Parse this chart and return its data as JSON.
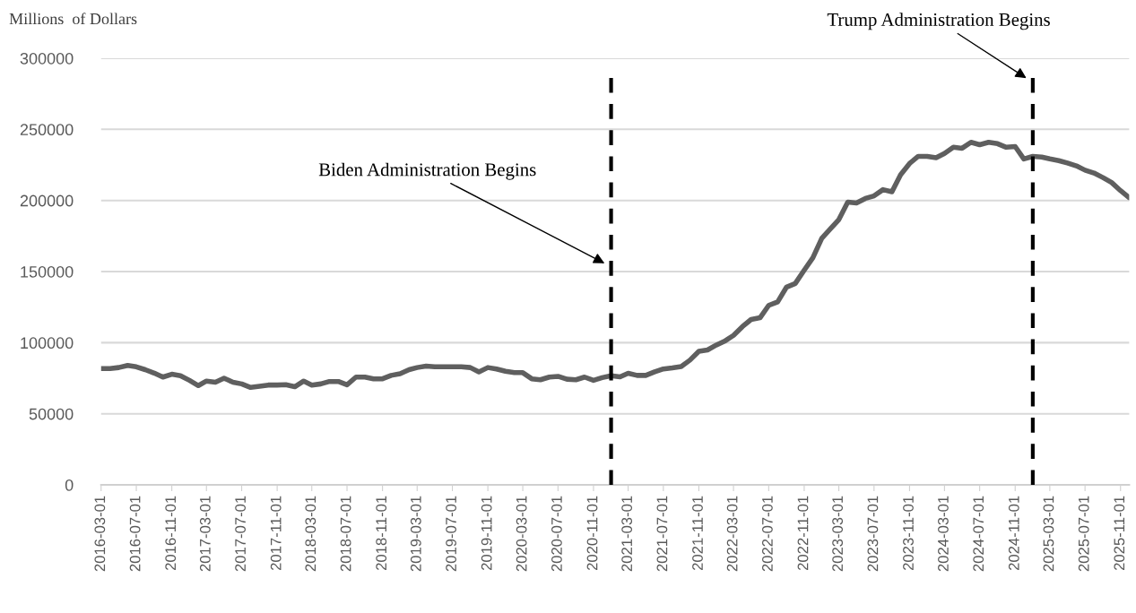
{
  "chart_data": {
    "type": "line",
    "ylabel": "Millions  of Dollars",
    "x": [
      "2016-03",
      "2016-04",
      "2016-05",
      "2016-06",
      "2016-07",
      "2016-08",
      "2016-09",
      "2016-10",
      "2016-11",
      "2016-12",
      "2017-01",
      "2017-02",
      "2017-03",
      "2017-04",
      "2017-05",
      "2017-06",
      "2017-07",
      "2017-08",
      "2017-09",
      "2017-10",
      "2017-11",
      "2017-12",
      "2018-01",
      "2018-02",
      "2018-03",
      "2018-04",
      "2018-05",
      "2018-06",
      "2018-07",
      "2018-08",
      "2018-09",
      "2018-10",
      "2018-11",
      "2018-12",
      "2019-01",
      "2019-02",
      "2019-03",
      "2019-04",
      "2019-05",
      "2019-06",
      "2019-07",
      "2019-08",
      "2019-09",
      "2019-10",
      "2019-11",
      "2019-12",
      "2020-01",
      "2020-02",
      "2020-03",
      "2020-04",
      "2020-05",
      "2020-06",
      "2020-07",
      "2020-08",
      "2020-09",
      "2020-10",
      "2020-11",
      "2020-12",
      "2021-01",
      "2021-02",
      "2021-03",
      "2021-04",
      "2021-05",
      "2021-06",
      "2021-07",
      "2021-08",
      "2021-09",
      "2021-10",
      "2021-11",
      "2021-12",
      "2022-01",
      "2022-02",
      "2022-03",
      "2022-04",
      "2022-05",
      "2022-06",
      "2022-07",
      "2022-08",
      "2022-09",
      "2022-10",
      "2022-11",
      "2022-12",
      "2023-01",
      "2023-02",
      "2023-03",
      "2023-04",
      "2023-05",
      "2023-06",
      "2023-07",
      "2023-08",
      "2023-09",
      "2023-10",
      "2023-11",
      "2023-12",
      "2024-01",
      "2024-02",
      "2024-03",
      "2024-04",
      "2024-05",
      "2024-06",
      "2024-07",
      "2024-08",
      "2024-09",
      "2024-10",
      "2024-11",
      "2024-12",
      "2025-01",
      "2025-02",
      "2025-03",
      "2025-04",
      "2025-05",
      "2025-06",
      "2025-07",
      "2025-08",
      "2025-09",
      "2025-10",
      "2025-11",
      "2025-12"
    ],
    "series": [
      {
        "color": "#5f5f5f",
        "values": [
          81800,
          81800,
          82500,
          84000,
          83000,
          81000,
          78600,
          75800,
          77800,
          76800,
          73500,
          69800,
          73000,
          72200,
          75000,
          72200,
          71000,
          68500,
          69300,
          70200,
          70200,
          70400,
          69000,
          73000,
          70200,
          71000,
          72700,
          72700,
          70400,
          75800,
          75800,
          74600,
          74600,
          77000,
          78200,
          81000,
          82500,
          83500,
          83000,
          83000,
          83000,
          83000,
          82500,
          79400,
          82500,
          81500,
          79900,
          78900,
          78900,
          74600,
          73900,
          75800,
          76300,
          74300,
          73900,
          75800,
          73500,
          75400,
          76800,
          76000,
          78500,
          77000,
          77000,
          79500,
          81500,
          82200,
          83200,
          87700,
          93900,
          94900,
          98400,
          101400,
          105100,
          111300,
          116300,
          117500,
          126200,
          128700,
          139100,
          141600,
          151000,
          159700,
          173400,
          180300,
          186500,
          198900,
          198200,
          201400,
          203200,
          207600,
          206100,
          218100,
          226000,
          231000,
          231000,
          230000,
          233000,
          237400,
          236700,
          240900,
          239200,
          240900,
          239900,
          237400,
          237900,
          229200,
          231000,
          230500,
          229200,
          228000,
          226300,
          224300,
          221300,
          219300,
          216100,
          212600,
          206900,
          201900
        ]
      }
    ],
    "xlim": [
      "2016-03-01",
      "2025-12-01"
    ],
    "xticks": [
      "2016-03-01",
      "2016-07-01",
      "2016-11-01",
      "2017-03-01",
      "2017-07-01",
      "2017-11-01",
      "2018-03-01",
      "2018-07-01",
      "2018-11-01",
      "2019-03-01",
      "2019-07-01",
      "2019-11-01",
      "2020-03-01",
      "2020-07-01",
      "2020-11-01",
      "2021-03-01",
      "2021-07-01",
      "2021-11-01",
      "2022-03-01",
      "2022-07-01",
      "2022-11-01",
      "2023-03-01",
      "2023-07-01",
      "2023-11-01",
      "2024-03-01",
      "2024-07-01",
      "2024-11-01",
      "2025-03-01",
      "2025-07-01",
      "2025-11-01"
    ],
    "ylim": [
      0,
      300000
    ],
    "yticks": [
      0,
      50000,
      100000,
      150000,
      200000,
      250000,
      300000
    ],
    "grid": "y",
    "line_style": "solid",
    "marker": "none",
    "ref_lines": [
      {
        "axis": "x",
        "value": "2021-01",
        "label": "Biden Administration Begins",
        "color": "#000000",
        "line_style": "dashed"
      },
      {
        "axis": "x",
        "value": "2025-01",
        "label": "Trump Administration Begins",
        "color": "#000000",
        "line_style": "dashed"
      }
    ]
  }
}
